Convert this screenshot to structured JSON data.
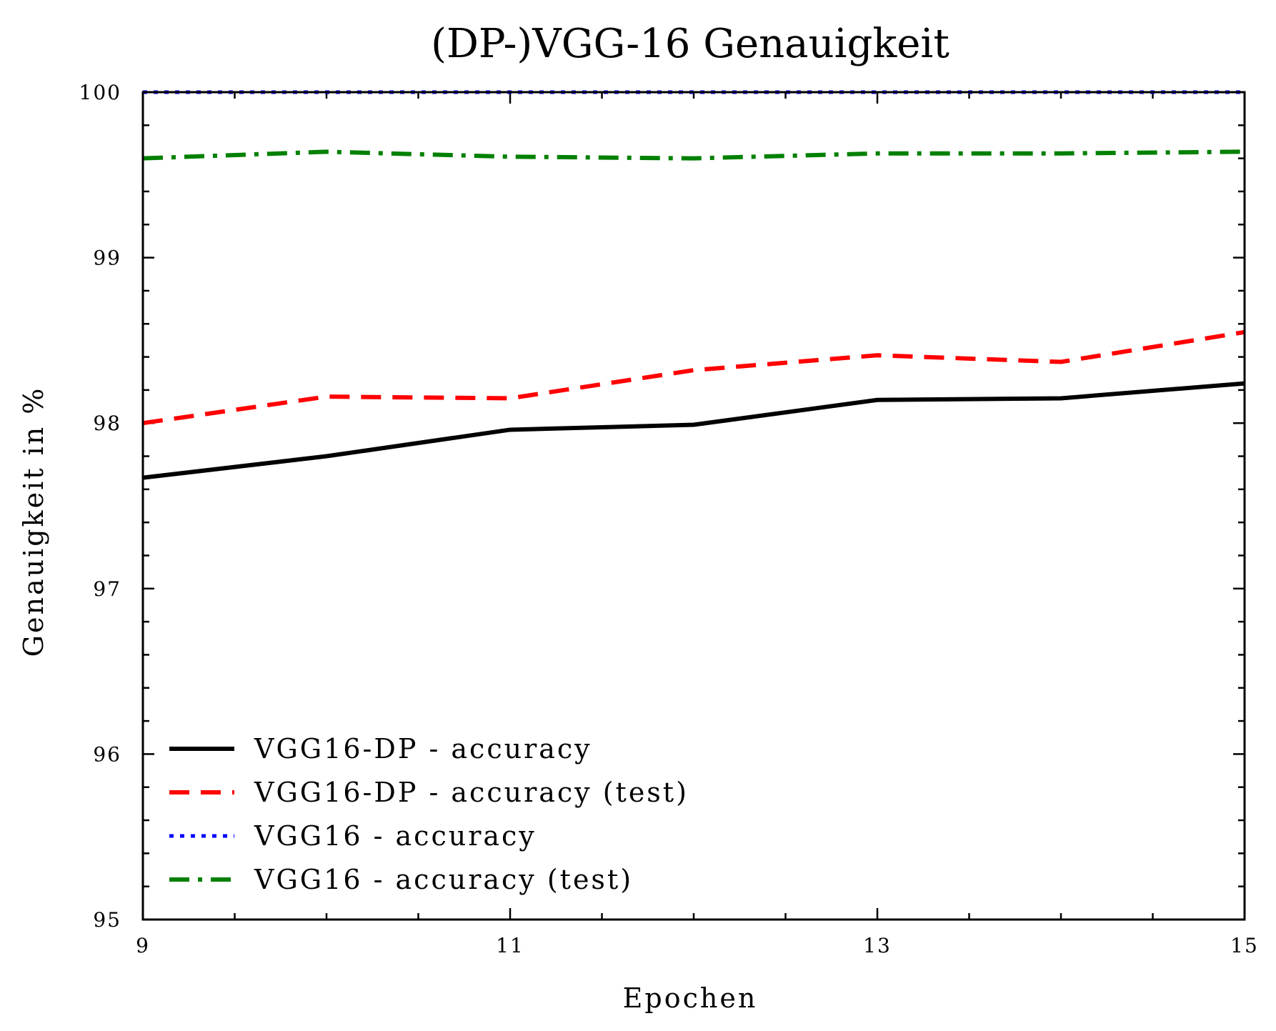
{
  "chart_data": {
    "type": "line",
    "title": "(DP-)VGG-16 Genauigkeit",
    "xlabel": "Epochen",
    "ylabel": "Genauigkeit in %",
    "xlim": [
      9,
      15
    ],
    "ylim": [
      95,
      100
    ],
    "x_ticks": [
      9,
      11,
      13,
      15
    ],
    "x_tick_labels": [
      "9",
      "11",
      "13",
      "15"
    ],
    "y_ticks": [
      95,
      96,
      97,
      98,
      99,
      100
    ],
    "y_tick_labels": [
      "95",
      "96",
      "97",
      "98",
      "99",
      "100"
    ],
    "x_minor_step": 0.5,
    "y_minor_step": 0.2,
    "grid": false,
    "legend_position": "bottom-left",
    "x": [
      9,
      10,
      11,
      12,
      13,
      14,
      15
    ],
    "series": [
      {
        "name": "VGG16-DP - accuracy",
        "color": "#000000",
        "style": "solid",
        "values": [
          97.67,
          97.8,
          97.96,
          97.99,
          98.14,
          98.15,
          98.24
        ]
      },
      {
        "name": "VGG16-DP - accuracy (test)",
        "color": "#ff0000",
        "style": "dashed",
        "values": [
          98.0,
          98.16,
          98.15,
          98.32,
          98.41,
          98.37,
          98.55
        ]
      },
      {
        "name": "VGG16 - accuracy",
        "color": "#0000ff",
        "style": "dotted",
        "values": [
          100.0,
          100.0,
          100.0,
          100.0,
          100.0,
          100.0,
          100.0
        ]
      },
      {
        "name": "VGG16 - accuracy (test)",
        "color": "#008000",
        "style": "dashdot",
        "values": [
          99.6,
          99.64,
          99.61,
          99.6,
          99.63,
          99.63,
          99.64
        ]
      }
    ]
  }
}
